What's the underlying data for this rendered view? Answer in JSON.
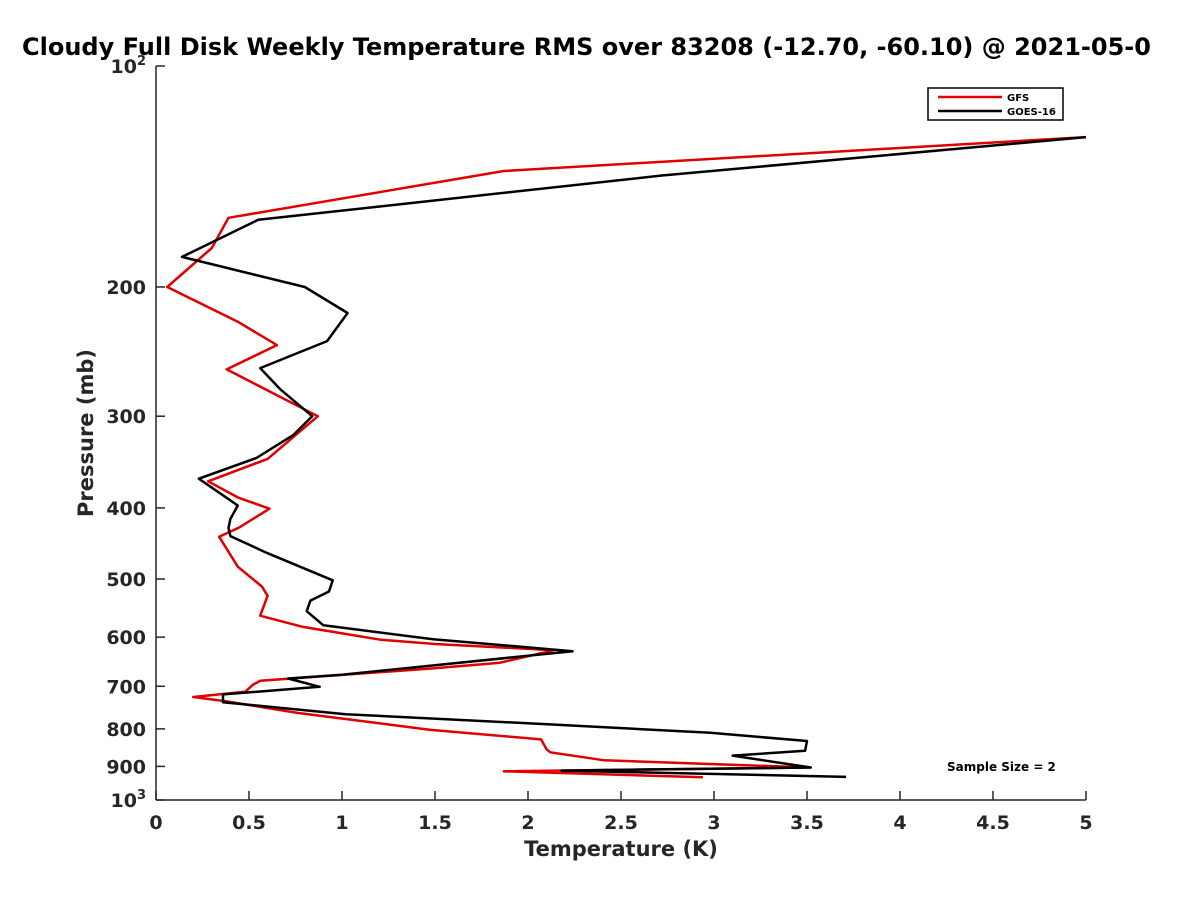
{
  "chart_data": {
    "type": "line",
    "title": "Cloudy Full Disk Weekly Temperature RMS over 83208 (-12.70, -60.10) @ 2021-05-0",
    "xlabel": "Temperature (K)",
    "ylabel": "Pressure (mb)",
    "xlim": [
      0,
      5
    ],
    "ylim": [
      100,
      1000
    ],
    "y_scale": "log",
    "y_reversed": true,
    "grid": false,
    "legend_position": "top-right",
    "x_ticks": [
      {
        "value": 0,
        "label": "0"
      },
      {
        "value": 0.5,
        "label": "0.5"
      },
      {
        "value": 1,
        "label": "1"
      },
      {
        "value": 1.5,
        "label": "1.5"
      },
      {
        "value": 2,
        "label": "2"
      },
      {
        "value": 2.5,
        "label": "2.5"
      },
      {
        "value": 3,
        "label": "3"
      },
      {
        "value": 3.5,
        "label": "3.5"
      },
      {
        "value": 4,
        "label": "4"
      },
      {
        "value": 4.5,
        "label": "4.5"
      },
      {
        "value": 5,
        "label": "5"
      }
    ],
    "y_ticks": [
      {
        "value": 100,
        "base": "10",
        "exp": "2"
      },
      {
        "value": 200,
        "label": "200"
      },
      {
        "value": 300,
        "label": "300"
      },
      {
        "value": 400,
        "label": "400"
      },
      {
        "value": 500,
        "label": "500"
      },
      {
        "value": 600,
        "label": "600"
      },
      {
        "value": 700,
        "label": "700"
      },
      {
        "value": 800,
        "label": "800"
      },
      {
        "value": 900,
        "label": "900"
      },
      {
        "value": 1000,
        "base": "10",
        "exp": "3"
      }
    ],
    "annotation": "Sample Size = 2",
    "series": [
      {
        "name": "GFS",
        "color": "#e00000",
        "points": [
          [
            5.0,
            125
          ],
          [
            1.87,
            139
          ],
          [
            0.39,
            161
          ],
          [
            0.3,
            177
          ],
          [
            0.06,
            200
          ],
          [
            0.44,
            223
          ],
          [
            0.65,
            240
          ],
          [
            0.38,
            259
          ],
          [
            0.87,
            300
          ],
          [
            0.6,
            343
          ],
          [
            0.28,
            368
          ],
          [
            0.44,
            387
          ],
          [
            0.61,
            401
          ],
          [
            0.45,
            425
          ],
          [
            0.34,
            438
          ],
          [
            0.44,
            481
          ],
          [
            0.57,
            512
          ],
          [
            0.6,
            527
          ],
          [
            0.56,
            561
          ],
          [
            0.79,
            581
          ],
          [
            1.21,
            605
          ],
          [
            1.5,
            613
          ],
          [
            2.14,
            625
          ],
          [
            1.85,
            650
          ],
          [
            1.48,
            662
          ],
          [
            0.56,
            688
          ],
          [
            0.52,
            697
          ],
          [
            0.48,
            712
          ],
          [
            0.2,
            724
          ],
          [
            0.38,
            734
          ],
          [
            0.76,
            761
          ],
          [
            1.47,
            802
          ],
          [
            2.07,
            827
          ],
          [
            2.1,
            853
          ],
          [
            2.12,
            861
          ],
          [
            2.41,
            883
          ],
          [
            3.52,
            903
          ],
          [
            1.87,
            914
          ],
          [
            2.94,
            931
          ]
        ]
      },
      {
        "name": "GOES-16",
        "color": "#000000",
        "points": [
          [
            5.0,
            125
          ],
          [
            2.72,
            141
          ],
          [
            0.55,
            162
          ],
          [
            0.14,
            182
          ],
          [
            0.8,
            200
          ],
          [
            1.03,
            217
          ],
          [
            0.92,
            237
          ],
          [
            0.56,
            258
          ],
          [
            0.67,
            276
          ],
          [
            0.84,
            300
          ],
          [
            0.74,
            318
          ],
          [
            0.54,
            342
          ],
          [
            0.23,
            365
          ],
          [
            0.44,
            397
          ],
          [
            0.4,
            414
          ],
          [
            0.39,
            426
          ],
          [
            0.4,
            437
          ],
          [
            0.6,
            461
          ],
          [
            0.95,
            502
          ],
          [
            0.93,
            520
          ],
          [
            0.83,
            535
          ],
          [
            0.81,
            553
          ],
          [
            0.9,
            578
          ],
          [
            1.49,
            604
          ],
          [
            2.24,
            627
          ],
          [
            1.0,
            675
          ],
          [
            0.71,
            683
          ],
          [
            0.88,
            701
          ],
          [
            0.36,
            718
          ],
          [
            0.36,
            736
          ],
          [
            1.02,
            764
          ],
          [
            2.13,
            789
          ],
          [
            2.98,
            810
          ],
          [
            3.5,
            831
          ],
          [
            3.49,
            857
          ],
          [
            3.1,
            870
          ],
          [
            3.52,
            903
          ],
          [
            2.18,
            912
          ],
          [
            3.71,
            930
          ]
        ]
      }
    ]
  }
}
